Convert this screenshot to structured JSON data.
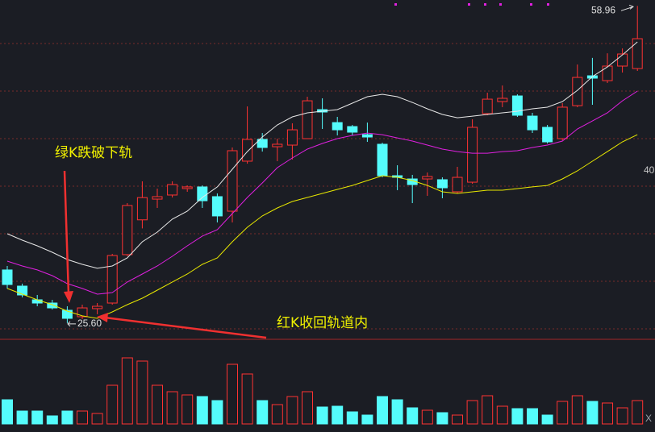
{
  "chart_data": {
    "type": "candlestick",
    "open": [
      31.19,
      29.49,
      28.05,
      27.71,
      26.95,
      26.27,
      27.12,
      27.71,
      32.8,
      36.46,
      38.64,
      39.07,
      39.75,
      39.92,
      38.9,
      37.37,
      42.63,
      44.92,
      44.15,
      44.32,
      45.0,
      48.05,
      46.69,
      46.27,
      45.42,
      44.41,
      41.1,
      40.76,
      40.76,
      40.68,
      39.41,
      40.42,
      47.63,
      48.9,
      49.49,
      47.37,
      46.19,
      45.0,
      48.47,
      51.61,
      51.1,
      52.63,
      52.37
    ],
    "high": [
      31.61,
      29.75,
      28.56,
      28.05,
      27.37,
      27.54,
      27.71,
      32.88,
      38.22,
      40.51,
      39.75,
      40.51,
      40.08,
      40.08,
      39.24,
      44.07,
      48.39,
      45.59,
      45.0,
      46.61,
      49.41,
      49.24,
      47.29,
      46.44,
      46.69,
      44.58,
      42.2,
      41.19,
      41.44,
      40.93,
      42.03,
      47.03,
      49.83,
      50.59,
      49.66,
      47.71,
      46.44,
      48.73,
      52.8,
      53.49,
      53.98,
      54.49,
      58.96
    ],
    "low": [
      29.24,
      28.3,
      27.37,
      27.03,
      25.6,
      26.02,
      26.53,
      27.54,
      32.63,
      35.56,
      37.71,
      38.81,
      39.41,
      37.71,
      36.19,
      36.19,
      42.37,
      43.64,
      42.63,
      42.8,
      45.0,
      46.02,
      45.34,
      45.34,
      44.66,
      40.93,
      39.58,
      38.22,
      38.98,
      38.73,
      39.24,
      40.25,
      47.46,
      48.31,
      47.29,
      45.59,
      44.49,
      44.83,
      48.31,
      48.56,
      50.85,
      51.95,
      52.12
    ],
    "close": [
      29.66,
      28.56,
      27.71,
      27.2,
      26.1,
      27.2,
      27.37,
      32.71,
      37.97,
      38.8,
      38.9,
      40.17,
      39.92,
      38.47,
      36.87,
      43.73,
      44.92,
      44.07,
      44.41,
      45.93,
      48.98,
      47.8,
      45.93,
      45.68,
      45.17,
      41.1,
      40.93,
      40.17,
      41.02,
      39.83,
      40.93,
      46.19,
      49.15,
      49.24,
      47.46,
      45.93,
      44.66,
      48.31,
      51.44,
      51.36,
      52.63,
      53.9,
      55.51
    ],
    "volume": [
      30,
      16,
      16,
      10,
      16,
      16,
      13,
      48,
      82,
      78,
      48,
      40,
      36,
      34,
      29,
      74,
      62,
      29,
      24,
      34,
      40,
      21,
      22,
      15,
      11,
      34,
      30,
      20,
      17,
      14,
      11,
      29,
      35,
      22,
      19,
      19,
      11,
      28,
      35,
      28,
      26,
      20,
      29
    ],
    "lines": [
      {
        "color": "#e8e8e8",
        "values": [
          35.0,
          34.32,
          33.73,
          33.05,
          32.29,
          31.78,
          31.36,
          31.61,
          32.46,
          34.15,
          35.17,
          36.53,
          37.37,
          38.81,
          39.92,
          41.78,
          43.64,
          45.17,
          46.44,
          47.29,
          47.71,
          47.88,
          48.05,
          48.73,
          49.41,
          49.66,
          49.41,
          48.81,
          48.14,
          47.54,
          47.2,
          47.37,
          47.54,
          47.71,
          47.88,
          48.14,
          48.31,
          48.9,
          50.08,
          51.53,
          52.54,
          53.81,
          55.17
        ]
      },
      {
        "color": "#e020e0",
        "values": [
          32.12,
          31.61,
          31.19,
          30.59,
          29.75,
          29.24,
          28.64,
          28.81,
          29.92,
          30.76,
          31.61,
          32.63,
          33.73,
          34.75,
          35.42,
          37.12,
          38.81,
          40.34,
          41.95,
          42.97,
          43.9,
          44.49,
          45.0,
          45.34,
          45.59,
          45.42,
          45.08,
          44.75,
          44.32,
          43.9,
          43.64,
          43.47,
          43.47,
          43.64,
          43.73,
          44.07,
          44.32,
          44.75,
          46.02,
          46.86,
          47.71,
          48.98,
          50.0
        ]
      },
      {
        "color": "#e8e800",
        "values": [
          29.24,
          28.64,
          28.05,
          27.54,
          26.86,
          26.36,
          26.1,
          26.78,
          27.54,
          28.22,
          29.07,
          29.92,
          30.76,
          31.78,
          32.46,
          34.15,
          35.68,
          36.87,
          37.71,
          38.39,
          38.81,
          39.24,
          39.66,
          40.08,
          40.59,
          41.1,
          40.93,
          40.59,
          40.08,
          39.41,
          39.24,
          39.41,
          39.58,
          39.58,
          39.75,
          39.92,
          40.08,
          40.76,
          41.61,
          42.63,
          43.64,
          44.66,
          45.42
        ]
      }
    ],
    "up_color": "#ff3232",
    "down_color": "#54fcfc",
    "ylim": [
      24.15,
      59.58
    ],
    "yticks": [
      40
    ],
    "grid_values": [
      25,
      30,
      35,
      40,
      45,
      50,
      55
    ],
    "vlim": [
      0,
      102
    ],
    "high_label": "58.96",
    "low_label": "25.60",
    "annotations": [
      "绿K跌破下轨",
      "红K收回轨道内"
    ],
    "panel_label": "X"
  }
}
